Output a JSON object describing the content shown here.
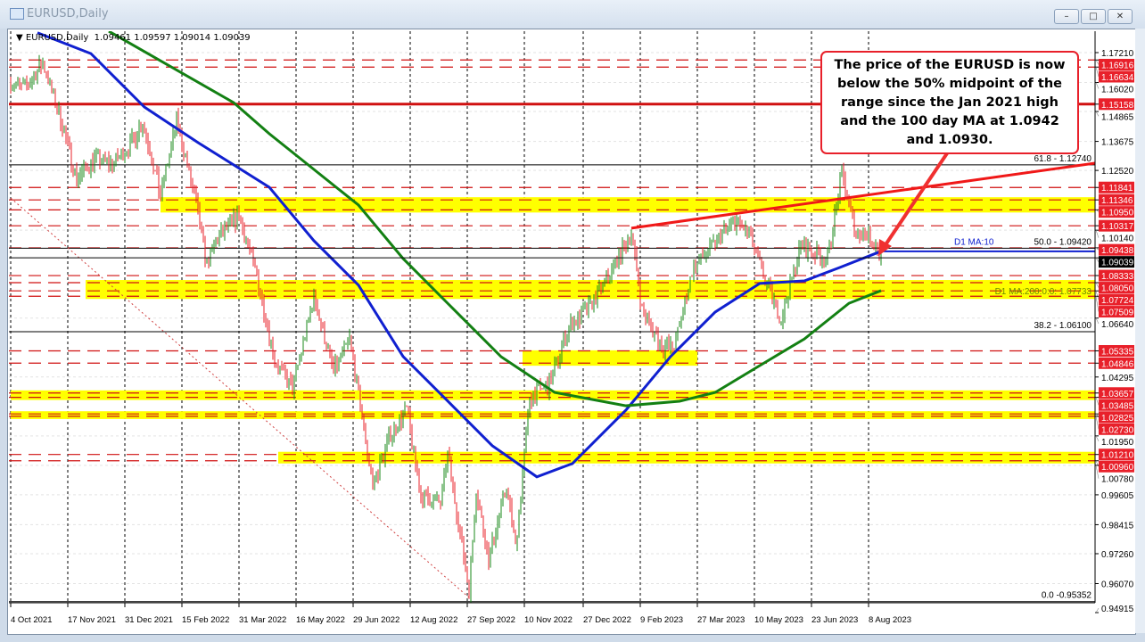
{
  "window": {
    "title": "EURUSD,Daily",
    "buttons": [
      "minimize",
      "maximize",
      "close"
    ]
  },
  "header": {
    "symbol": "EURUSD,Daily",
    "open": "1.09461",
    "high": "1.09597",
    "low": "1.09014",
    "close": "1.09039"
  },
  "annotation": "The price of the EURUSD is now below the 50% midpoint of the range since the Jan 2021 high and the 100 day MA at 1.0942 and 1.0930.",
  "colors": {
    "up": "#1a8a1a",
    "down": "#e8202a",
    "ma100": "#1020d0",
    "ma200": "#138013",
    "zone": "#ffff00",
    "level": "#d01010"
  },
  "chart_data": {
    "type": "ohlc",
    "title": "EURUSD,Daily",
    "ylim": [
      0.94915,
      1.178
    ],
    "grid": true,
    "y_ticks": [
      "1.17210",
      "1.16020",
      "1.14865",
      "1.13675",
      "1.12520",
      "1.10140",
      "1.06640",
      "1.04295",
      "1.01950",
      "1.00780",
      "0.99605",
      "0.98415",
      "0.97260",
      "0.96070",
      "0.94915"
    ],
    "x_ticks": [
      [
        "2021-10-04",
        "4 Oct 2021"
      ],
      [
        "2021-11-17",
        "17 Nov 2021"
      ],
      [
        "2021-12-31",
        "31 Dec 2021"
      ],
      [
        "2022-02-15",
        "15 Feb 2022"
      ],
      [
        "2022-03-31",
        "31 Mar 2022"
      ],
      [
        "2022-05-16",
        "16 May 2022"
      ],
      [
        "2022-06-29",
        "29 Jun 2022"
      ],
      [
        "2022-08-12",
        "12 Aug 2022"
      ],
      [
        "2022-09-27",
        "27 Sep 2022"
      ],
      [
        "2022-11-10",
        "10 Nov 2022"
      ],
      [
        "2022-12-27",
        "27 Dec 2022"
      ],
      [
        "2023-02-09",
        "9 Feb 2023"
      ],
      [
        "2023-03-27",
        "27 Mar 2023"
      ],
      [
        "2023-05-10",
        "10 May 2023"
      ],
      [
        "2023-06-23",
        "23 Jun 2023"
      ],
      [
        "2023-08-08",
        "8 Aug 2023"
      ]
    ],
    "close_path": [
      [
        "2021-10-04",
        1.16
      ],
      [
        "2021-10-14",
        1.158
      ],
      [
        "2021-10-28",
        1.168
      ],
      [
        "2021-11-10",
        1.148
      ],
      [
        "2021-11-24",
        1.122
      ],
      [
        "2021-12-08",
        1.13
      ],
      [
        "2021-12-22",
        1.128
      ],
      [
        "2022-01-05",
        1.135
      ],
      [
        "2022-01-14",
        1.145
      ],
      [
        "2022-01-28",
        1.115
      ],
      [
        "2022-02-10",
        1.145
      ],
      [
        "2022-02-24",
        1.115
      ],
      [
        "2022-03-07",
        1.088
      ],
      [
        "2022-03-15",
        1.098
      ],
      [
        "2022-03-31",
        1.107
      ],
      [
        "2022-04-14",
        1.083
      ],
      [
        "2022-04-28",
        1.05
      ],
      [
        "2022-05-12",
        1.038
      ],
      [
        "2022-05-30",
        1.075
      ],
      [
        "2022-06-14",
        1.045
      ],
      [
        "2022-06-27",
        1.058
      ],
      [
        "2022-07-14",
        1.0
      ],
      [
        "2022-07-28",
        1.02
      ],
      [
        "2022-08-10",
        1.03
      ],
      [
        "2022-08-22",
        0.995
      ],
      [
        "2022-09-06",
        0.993
      ],
      [
        "2022-09-12",
        1.012
      ],
      [
        "2022-09-28",
        0.958
      ],
      [
        "2022-10-04",
        0.998
      ],
      [
        "2022-10-13",
        0.97
      ],
      [
        "2022-10-27",
        1.0
      ],
      [
        "2022-11-03",
        0.975
      ],
      [
        "2022-11-15",
        1.035
      ],
      [
        "2022-11-30",
        1.04
      ],
      [
        "2022-12-15",
        1.063
      ],
      [
        "2022-12-30",
        1.07
      ],
      [
        "2023-01-16",
        1.083
      ],
      [
        "2023-02-02",
        1.1
      ],
      [
        "2023-02-10",
        1.07
      ],
      [
        "2023-02-27",
        1.055
      ],
      [
        "2023-03-08",
        1.055
      ],
      [
        "2023-03-22",
        1.085
      ],
      [
        "2023-04-14",
        1.1
      ],
      [
        "2023-04-26",
        1.105
      ],
      [
        "2023-05-05",
        1.1
      ],
      [
        "2023-05-17",
        1.083
      ],
      [
        "2023-05-31",
        1.066
      ],
      [
        "2023-06-15",
        1.095
      ],
      [
        "2023-07-06",
        1.09
      ],
      [
        "2023-07-18",
        1.124
      ],
      [
        "2023-07-28",
        1.1
      ],
      [
        "2023-08-04",
        1.1
      ],
      [
        "2023-08-10",
        1.098
      ],
      [
        "2023-08-17",
        1.0904
      ]
    ],
    "ma100": {
      "label": "D1 MA:10",
      "points": [
        [
          "2021-10-24",
          1.18
        ],
        [
          "2021-12-05",
          1.1717
        ],
        [
          "2022-01-17",
          1.1504
        ],
        [
          "2022-02-28",
          1.1363
        ],
        [
          "2022-03-28",
          1.1274
        ],
        [
          "2022-04-25",
          1.1185
        ],
        [
          "2022-05-30",
          1.0972
        ],
        [
          "2022-07-04",
          1.0795
        ],
        [
          "2022-08-08",
          1.0511
        ],
        [
          "2022-09-12",
          1.0334
        ],
        [
          "2022-10-17",
          1.0156
        ],
        [
          "2022-11-21",
          1.0032
        ],
        [
          "2022-12-19",
          1.0085
        ],
        [
          "2023-01-30",
          1.0298
        ],
        [
          "2023-03-06",
          1.0511
        ],
        [
          "2023-04-10",
          1.0688
        ],
        [
          "2023-05-15",
          1.0802
        ],
        [
          "2023-06-19",
          1.0812
        ],
        [
          "2023-07-17",
          1.0866
        ],
        [
          "2023-08-17",
          1.093
        ]
      ],
      "value": 1.093
    },
    "ma200": {
      "label": "D1 MA:200:0:0: 1.07733",
      "points": [
        [
          "2021-12-19",
          1.1806
        ],
        [
          "2022-03-28",
          1.1522
        ],
        [
          "2022-04-25",
          1.1398
        ],
        [
          "2022-07-04",
          1.1114
        ],
        [
          "2022-08-08",
          1.0901
        ],
        [
          "2022-09-12",
          1.0723
        ],
        [
          "2022-10-23",
          1.051
        ],
        [
          "2022-12-04",
          1.0368
        ],
        [
          "2023-01-30",
          1.0315
        ],
        [
          "2023-03-11",
          1.0333
        ],
        [
          "2023-04-10",
          1.0368
        ],
        [
          "2023-05-15",
          1.0475
        ],
        [
          "2023-06-19",
          1.0581
        ],
        [
          "2023-07-22",
          1.0723
        ],
        [
          "2023-08-17",
          1.07733
        ]
      ]
    },
    "levels": [
      {
        "price": "1.16916",
        "style": "dashed"
      },
      {
        "price": "1.16634",
        "style": "dashed"
      },
      {
        "price": "1.15158",
        "style": "solid"
      },
      {
        "price": "1.11841",
        "style": "dashed"
      },
      {
        "price": "1.11346",
        "style": "dashed"
      },
      {
        "price": "1.10950",
        "style": "dashed"
      },
      {
        "price": "1.10317",
        "style": "dashed"
      },
      {
        "price": "1.09438",
        "style": "dashed"
      },
      {
        "price": "1.08333",
        "style": "dashed"
      },
      {
        "price": "1.08050",
        "style": "dashed"
      },
      {
        "price": "1.07724",
        "style": "dashed"
      },
      {
        "price": "1.07509",
        "style": "dashed"
      },
      {
        "price": "1.05335",
        "style": "dashed"
      },
      {
        "price": "1.04846",
        "style": "dashed"
      },
      {
        "price": "1.03657",
        "style": "dashed"
      },
      {
        "price": "1.03485",
        "style": "dashed"
      },
      {
        "price": "1.02825",
        "style": "dashed"
      },
      {
        "price": "1.02730",
        "style": "dashed"
      },
      {
        "price": "1.01210",
        "style": "dashed"
      },
      {
        "price": "1.00960",
        "style": "dashed"
      }
    ],
    "zones": [
      {
        "low": 1.1095,
        "high": 1.11346,
        "from": "2022-01-28"
      },
      {
        "low": 1.07509,
        "high": 1.0805,
        "from": "2021-12-01"
      },
      {
        "low": 1.03485,
        "high": 1.03657,
        "from": "2021-10-04"
      },
      {
        "low": 1.0273,
        "high": 1.02825,
        "from": "2021-10-04"
      },
      {
        "low": 1.0096,
        "high": 1.0121,
        "from": "2022-04-30"
      },
      {
        "low": 1.0485,
        "high": 1.0525,
        "from": "2022-11-09",
        "to": "2023-03-27"
      }
    ],
    "fibonacci": [
      {
        "label": "61.8 - 1.12740",
        "price": 1.1274
      },
      {
        "label": "50.0 - 1.09420",
        "price": 1.0942
      },
      {
        "label": "38.2 - 1.06100",
        "price": 1.061
      },
      {
        "label": "0.0 -0.95352",
        "price": 0.95352
      }
    ],
    "trendlines": [
      {
        "color": "red",
        "style": "solid",
        "from": [
          "2023-02-02",
          1.1022
        ],
        "to": [
          "2024-02-01",
          1.1281
        ]
      },
      {
        "color": "red",
        "style": "dotted",
        "from": [
          "2021-10-03",
          1.1142
        ],
        "to": [
          "2022-09-29",
          0.9545
        ]
      }
    ],
    "current_price": "1.09039"
  }
}
